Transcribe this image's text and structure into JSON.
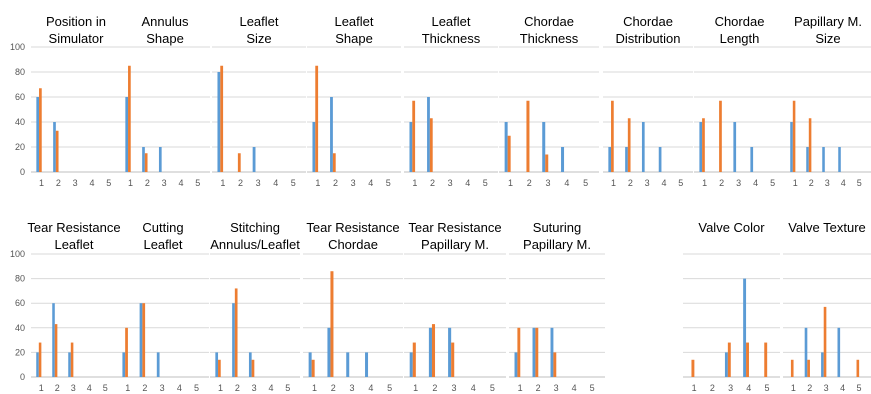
{
  "colors": {
    "series_a": "#5b9bd5",
    "series_b": "#ed7d31",
    "grid": "#d9d9d9",
    "axis": "#bfbfbf"
  },
  "y_ticks": [
    "0",
    "20",
    "40",
    "60",
    "80",
    "100"
  ],
  "chart_data": [
    {
      "type": "bar",
      "title": [
        "Position in",
        "Simulator"
      ],
      "categories": [
        "1",
        "2",
        "3",
        "4",
        "5"
      ],
      "ylim": [
        0,
        100
      ],
      "series": [
        {
          "values": [
            60,
            40,
            0,
            0,
            0
          ]
        },
        {
          "values": [
            67,
            33,
            0,
            0,
            0
          ]
        }
      ]
    },
    {
      "type": "bar",
      "title": [
        "Annulus",
        "Shape"
      ],
      "categories": [
        "1",
        "2",
        "3",
        "4",
        "5"
      ],
      "ylim": [
        0,
        100
      ],
      "series": [
        {
          "values": [
            60,
            20,
            20,
            0,
            0
          ]
        },
        {
          "values": [
            85,
            15,
            0,
            0,
            0
          ]
        }
      ]
    },
    {
      "type": "bar",
      "title": [
        "Leaflet",
        "Size"
      ],
      "categories": [
        "1",
        "2",
        "3",
        "4",
        "5"
      ],
      "ylim": [
        0,
        100
      ],
      "series": [
        {
          "values": [
            80,
            0,
            20,
            0,
            0
          ]
        },
        {
          "values": [
            85,
            15,
            0,
            0,
            0
          ]
        }
      ]
    },
    {
      "type": "bar",
      "title": [
        "Leaflet",
        "Shape"
      ],
      "categories": [
        "1",
        "2",
        "3",
        "4",
        "5"
      ],
      "ylim": [
        0,
        100
      ],
      "series": [
        {
          "values": [
            40,
            60,
            0,
            0,
            0
          ]
        },
        {
          "values": [
            85,
            15,
            0,
            0,
            0
          ]
        }
      ]
    },
    {
      "type": "bar",
      "title": [
        "Leaflet",
        "Thickness"
      ],
      "categories": [
        "1",
        "2",
        "3",
        "4",
        "5"
      ],
      "ylim": [
        0,
        100
      ],
      "series": [
        {
          "values": [
            40,
            60,
            0,
            0,
            0
          ]
        },
        {
          "values": [
            57,
            43,
            0,
            0,
            0
          ]
        }
      ]
    },
    {
      "type": "bar",
      "title": [
        "Chordae",
        "Thickness"
      ],
      "categories": [
        "1",
        "2",
        "3",
        "4",
        "5"
      ],
      "ylim": [
        0,
        100
      ],
      "series": [
        {
          "values": [
            40,
            0,
            40,
            20,
            0
          ]
        },
        {
          "values": [
            29,
            57,
            14,
            0,
            0
          ]
        }
      ]
    },
    {
      "type": "bar",
      "title": [
        "Chordae",
        "Distribution"
      ],
      "categories": [
        "1",
        "2",
        "3",
        "4",
        "5"
      ],
      "ylim": [
        0,
        100
      ],
      "series": [
        {
          "values": [
            20,
            20,
            40,
            20,
            0
          ]
        },
        {
          "values": [
            57,
            43,
            0,
            0,
            0
          ]
        }
      ]
    },
    {
      "type": "bar",
      "title": [
        "Chordae",
        "Length"
      ],
      "categories": [
        "1",
        "2",
        "3",
        "4",
        "5"
      ],
      "ylim": [
        0,
        100
      ],
      "series": [
        {
          "values": [
            40,
            0,
            40,
            20,
            0
          ]
        },
        {
          "values": [
            43,
            57,
            0,
            0,
            0
          ]
        }
      ]
    },
    {
      "type": "bar",
      "title": [
        "Papillary M.",
        "Size"
      ],
      "categories": [
        "1",
        "2",
        "3",
        "4",
        "5"
      ],
      "ylim": [
        0,
        100
      ],
      "series": [
        {
          "values": [
            40,
            20,
            20,
            20,
            0
          ]
        },
        {
          "values": [
            57,
            43,
            0,
            0,
            0
          ]
        }
      ]
    },
    {
      "type": "bar",
      "title": [
        "Tear Resistance",
        "Leaflet"
      ],
      "categories": [
        "1",
        "2",
        "3",
        "4",
        "5"
      ],
      "ylim": [
        0,
        100
      ],
      "series": [
        {
          "values": [
            20,
            60,
            20,
            0,
            0
          ]
        },
        {
          "values": [
            28,
            43,
            28,
            0,
            0
          ]
        }
      ]
    },
    {
      "type": "bar",
      "title": [
        "Cutting",
        "Leaflet"
      ],
      "categories": [
        "1",
        "2",
        "3",
        "4",
        "5"
      ],
      "ylim": [
        0,
        100
      ],
      "series": [
        {
          "values": [
            20,
            60,
            20,
            0,
            0
          ]
        },
        {
          "values": [
            40,
            60,
            0,
            0,
            0
          ]
        }
      ]
    },
    {
      "type": "bar",
      "title": [
        "Stitching",
        "Annulus/Leaflet"
      ],
      "categories": [
        "1",
        "2",
        "3",
        "4",
        "5"
      ],
      "ylim": [
        0,
        100
      ],
      "series": [
        {
          "values": [
            20,
            60,
            20,
            0,
            0
          ]
        },
        {
          "values": [
            14,
            72,
            14,
            0,
            0
          ]
        }
      ]
    },
    {
      "type": "bar",
      "title": [
        "Tear Resistance",
        "Chordae"
      ],
      "categories": [
        "1",
        "2",
        "3",
        "4",
        "5"
      ],
      "ylim": [
        0,
        100
      ],
      "series": [
        {
          "values": [
            20,
            40,
            20,
            20,
            0
          ]
        },
        {
          "values": [
            14,
            86,
            0,
            0,
            0
          ]
        }
      ]
    },
    {
      "type": "bar",
      "title": [
        "Tear Resistance",
        "Papillary M."
      ],
      "categories": [
        "1",
        "2",
        "3",
        "4",
        "5"
      ],
      "ylim": [
        0,
        100
      ],
      "series": [
        {
          "values": [
            20,
            40,
            40,
            0,
            0
          ]
        },
        {
          "values": [
            28,
            43,
            28,
            0,
            0
          ]
        }
      ]
    },
    {
      "type": "bar",
      "title": [
        "Suturing",
        "Papillary M."
      ],
      "categories": [
        "1",
        "2",
        "3",
        "4",
        "5"
      ],
      "ylim": [
        0,
        100
      ],
      "series": [
        {
          "values": [
            20,
            40,
            40,
            0,
            0
          ]
        },
        {
          "values": [
            40,
            40,
            20,
            0,
            0
          ]
        }
      ]
    },
    {
      "type": "bar",
      "title": [
        "Valve Color"
      ],
      "categories": [
        "1",
        "2",
        "3",
        "4",
        "5"
      ],
      "ylim": [
        0,
        100
      ],
      "series": [
        {
          "values": [
            0,
            0,
            20,
            80,
            0
          ]
        },
        {
          "values": [
            14,
            0,
            28,
            28,
            28
          ]
        }
      ]
    },
    {
      "type": "bar",
      "title": [
        "Valve Texture"
      ],
      "categories": [
        "1",
        "2",
        "3",
        "4",
        "5"
      ],
      "ylim": [
        0,
        100
      ],
      "series": [
        {
          "values": [
            0,
            40,
            20,
            40,
            0
          ]
        },
        {
          "values": [
            14,
            14,
            57,
            0,
            14
          ]
        }
      ]
    }
  ]
}
